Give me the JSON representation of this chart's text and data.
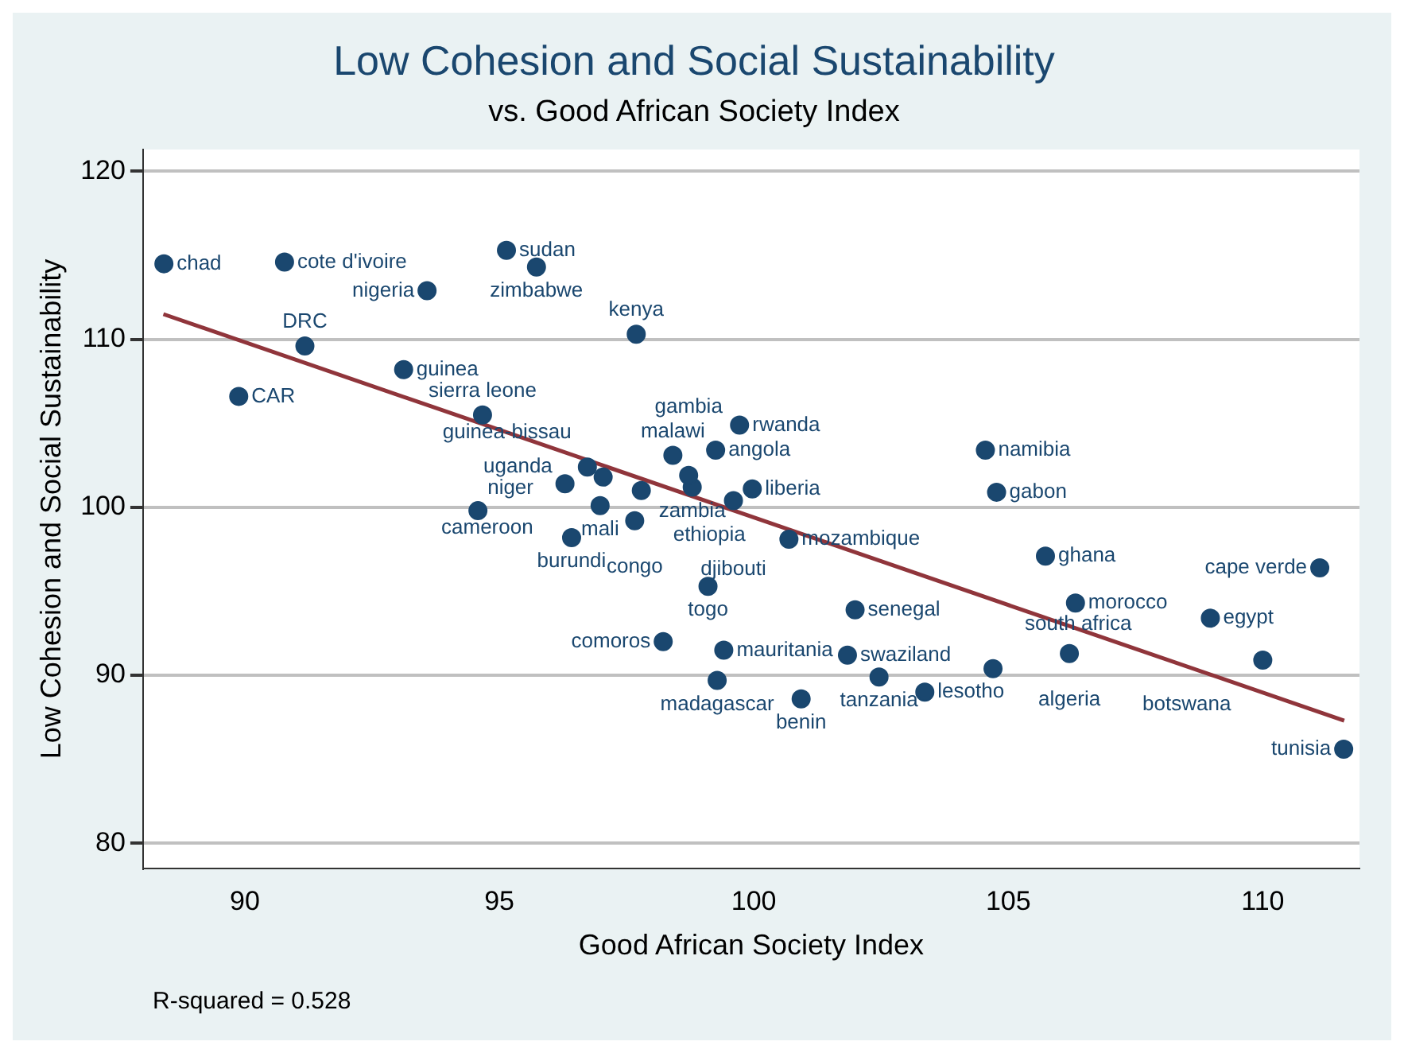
{
  "chart_data": {
    "type": "scatter",
    "title": "Low Cohesion and Social Sustainability",
    "subtitle": "vs. Good African Society Index",
    "xlabel": "Good African Society Index",
    "ylabel": "Low Cohesion and Social Sustainability",
    "xlim": [
      88,
      111.9
    ],
    "ylim": [
      78.5,
      121.3
    ],
    "xticks": [
      90,
      95,
      100,
      105,
      110
    ],
    "yticks": [
      80,
      90,
      100,
      110,
      120
    ],
    "grid": "y",
    "legend": false,
    "marker": "circle",
    "series": [
      {
        "type": "scatter",
        "color": "#1a476f",
        "x": [
          88.41,
          90.78,
          95.14,
          95.73,
          93.58,
          97.69,
          91.18,
          93.12,
          89.88,
          94.67,
          99.72,
          98.41,
          99.25,
          97.04,
          96.73,
          96.29,
          99.97,
          97.79,
          98.79,
          98.72,
          99.6,
          94.58,
          96.98,
          97.66,
          96.42,
          100.69,
          99.1,
          98.22,
          99.41,
          99.28,
          101.99,
          101.84,
          102.46,
          100.93,
          103.36,
          104.55,
          104.77,
          105.73,
          111.12,
          106.32,
          108.97,
          110.0,
          106.2,
          104.7,
          111.59
        ],
        "values": [
          114.5,
          114.6,
          115.3,
          114.3,
          112.9,
          110.3,
          109.6,
          108.2,
          106.6,
          105.5,
          104.9,
          103.1,
          103.4,
          101.8,
          102.4,
          101.4,
          101.1,
          101.0,
          101.2,
          101.9,
          100.4,
          99.8,
          100.1,
          99.2,
          98.2,
          98.1,
          95.3,
          92.0,
          91.5,
          89.7,
          93.9,
          91.2,
          89.9,
          88.6,
          89.0,
          103.4,
          100.9,
          97.1,
          96.4,
          94.3,
          93.4,
          90.9,
          91.3,
          90.4,
          85.6
        ]
      },
      {
        "type": "line",
        "color": "#90353b",
        "marker": "none",
        "x": [
          88.4,
          111.6
        ],
        "values": [
          111.5,
          87.3
        ]
      }
    ],
    "annotations": [
      {
        "text": "chad",
        "x": 88.41,
        "y": 114.5
      },
      {
        "text": "cote d'ivoire",
        "x": 90.78,
        "y": 114.6
      },
      {
        "text": "sudan",
        "x": 95.14,
        "y": 115.3
      },
      {
        "text": "zimbabwe",
        "x": 95.73,
        "y": 114.3
      },
      {
        "text": "nigeria",
        "x": 93.58,
        "y": 112.9
      },
      {
        "text": "kenya",
        "x": 97.69,
        "y": 110.3
      },
      {
        "text": "DRC",
        "x": 91.18,
        "y": 109.6
      },
      {
        "text": "guinea",
        "x": 93.12,
        "y": 108.2
      },
      {
        "text": "CAR",
        "x": 89.88,
        "y": 106.6
      },
      {
        "text": "sierra leone",
        "x": 94.67,
        "y": 105.5
      },
      {
        "text": "rwanda",
        "x": 99.72,
        "y": 104.9
      },
      {
        "text": "malawi",
        "x": 98.41,
        "y": 103.1
      },
      {
        "text": "angola",
        "x": 99.25,
        "y": 103.4
      },
      {
        "text": "guinea-bissau",
        "x": 97.04,
        "y": 101.8
      },
      {
        "text": "uganda",
        "x": 96.73,
        "y": 102.4
      },
      {
        "text": "cameroon",
        "x": 96.29,
        "y": 101.4
      },
      {
        "text": "liberia",
        "x": 99.97,
        "y": 101.1
      },
      {
        "text": "ethiopia",
        "x": 97.79,
        "y": 101.0
      },
      {
        "text": "zambia",
        "x": 98.79,
        "y": 101.2
      },
      {
        "text": "gambia",
        "x": 98.72,
        "y": 101.9
      },
      {
        "text": "djibouti",
        "x": 99.6,
        "y": 100.4
      },
      {
        "text": "niger",
        "x": 94.58,
        "y": 99.8
      },
      {
        "text": "mali",
        "x": 96.98,
        "y": 100.1
      },
      {
        "text": "congo",
        "x": 97.66,
        "y": 99.2
      },
      {
        "text": "burundi",
        "x": 96.42,
        "y": 98.2
      },
      {
        "text": "mozambique",
        "x": 100.69,
        "y": 98.1
      },
      {
        "text": "togo",
        "x": 99.1,
        "y": 95.3
      },
      {
        "text": "comoros",
        "x": 98.22,
        "y": 92.0
      },
      {
        "text": "mauritania",
        "x": 99.41,
        "y": 91.5
      },
      {
        "text": "madagascar",
        "x": 99.28,
        "y": 89.7
      },
      {
        "text": "senegal",
        "x": 101.99,
        "y": 93.9
      },
      {
        "text": "swaziland",
        "x": 101.84,
        "y": 91.2
      },
      {
        "text": "tanzania",
        "x": 102.46,
        "y": 89.9
      },
      {
        "text": "benin",
        "x": 100.93,
        "y": 88.6
      },
      {
        "text": "lesotho",
        "x": 103.36,
        "y": 89.0
      },
      {
        "text": "namibia",
        "x": 104.55,
        "y": 103.4
      },
      {
        "text": "gabon",
        "x": 104.77,
        "y": 100.9
      },
      {
        "text": "ghana",
        "x": 105.73,
        "y": 97.1
      },
      {
        "text": "cape verde",
        "x": 111.12,
        "y": 96.4
      },
      {
        "text": "morocco",
        "x": 106.32,
        "y": 94.3
      },
      {
        "text": "egypt",
        "x": 108.97,
        "y": 93.4
      },
      {
        "text": "botswana",
        "x": 110.0,
        "y": 90.9
      },
      {
        "text": "algeria",
        "x": 106.2,
        "y": 91.3
      },
      {
        "text": "south africa",
        "x": 104.7,
        "y": 90.4
      },
      {
        "text": "tunisia",
        "x": 111.59,
        "y": 85.6
      },
      "R-squared = 0.528"
    ]
  }
}
